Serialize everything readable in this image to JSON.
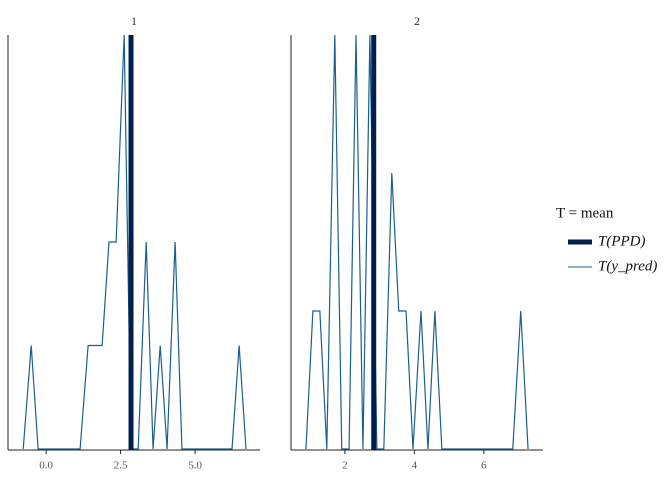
{
  "chart_data": [
    {
      "type": "line",
      "title": "1",
      "x": [
        -0.77,
        -0.5,
        -0.27,
        1.14,
        1.41,
        1.88,
        2.11,
        2.35,
        2.62,
        2.85,
        3.09,
        3.36,
        3.59,
        3.83,
        4.06,
        4.33,
        4.56,
        4.8,
        6.24,
        6.48,
        6.71
      ],
      "values": [
        0,
        1,
        0,
        0,
        1,
        1,
        2,
        2,
        4,
        0,
        0,
        2,
        0,
        1,
        0,
        2,
        0,
        0,
        0,
        1,
        0
      ],
      "color": "#1b5f8c",
      "ppd": 2.85,
      "ppd_color": "#011f4b",
      "xlim": [
        -1.28,
        7.18
      ],
      "ylim": [
        0,
        4
      ],
      "xticks": [
        {
          "value": 0,
          "label": "0.0"
        },
        {
          "value": 2.5,
          "label": "2.5"
        },
        {
          "value": 5,
          "label": "5.0"
        }
      ]
    },
    {
      "type": "line",
      "title": "2",
      "x": [
        0.88,
        1.08,
        1.28,
        1.48,
        1.71,
        1.91,
        2.12,
        2.32,
        2.52,
        2.72,
        2.92,
        3.12,
        3.35,
        3.55,
        3.76,
        3.96,
        4.19,
        4.39,
        4.59,
        4.79,
        6.83,
        7.06,
        7.27
      ],
      "values": [
        0,
        1,
        1,
        0,
        3,
        0,
        0,
        3,
        0,
        3,
        0,
        0,
        2,
        1,
        1,
        0,
        1,
        0,
        1,
        0,
        0,
        1,
        0
      ],
      "color": "#1b5f8c",
      "ppd": 2.83,
      "ppd_color": "#011f4b",
      "xlim": [
        0.45,
        7.7
      ],
      "ylim": [
        0,
        3
      ],
      "xticks": [
        2,
        4,
        6
      ]
    }
  ],
  "legend": {
    "title": "T = mean",
    "items": [
      {
        "name": "T(PPD)",
        "color": "#011f4b",
        "width": 5
      },
      {
        "name": "T(y_pred)",
        "color": "#1b5f8c",
        "width": 1
      }
    ]
  }
}
